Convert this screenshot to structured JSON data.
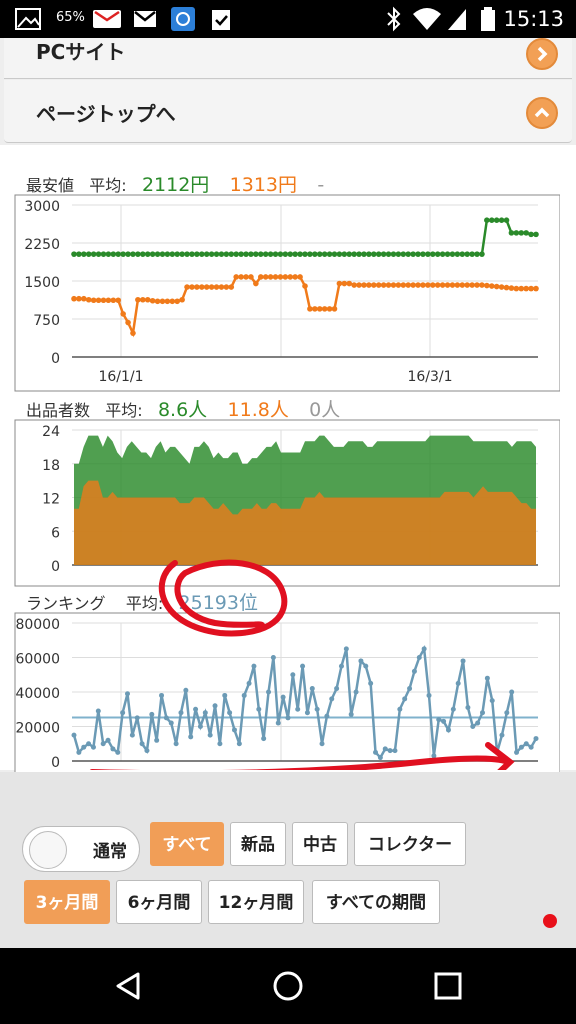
{
  "status_bar": {
    "battery_percent": "65%",
    "time": "15:13",
    "icons": [
      "image-icon",
      "battery-icon",
      "mail-icon",
      "gmail-icon",
      "app-icon",
      "clipboard-icon",
      "bluetooth-icon",
      "wifi-icon",
      "signal-icon",
      "battery-status-icon"
    ]
  },
  "nav": {
    "pc_site": "PCサイト",
    "page_top": "ページトップへ"
  },
  "price_chart": {
    "title": "最安値",
    "avg_label": "平均:",
    "avg_new": "2112円",
    "avg_used": "1313円",
    "avg_collector": "-"
  },
  "sellers_chart": {
    "title": "出品者数",
    "avg_label": "平均:",
    "avg_new": "8.6人",
    "avg_used": "11.8人",
    "avg_collector": "0人"
  },
  "ranking_chart": {
    "title": "ランキング",
    "avg_label": "平均:",
    "avg_value": "25193位"
  },
  "filters": {
    "toggle_label": "通常",
    "condition": [
      "すべて",
      "新品",
      "中古",
      "コレクター"
    ],
    "condition_selected": "すべて",
    "period": [
      "3ヶ月間",
      "6ヶ月間",
      "12ヶ月間",
      "すべての期間"
    ],
    "period_selected": "3ヶ月間"
  },
  "colors": {
    "green": "#2a8a2a",
    "orange": "#f07a1a",
    "ranking_blue": "#6b9ab5",
    "accent": "#f19e57"
  },
  "chart_data": [
    {
      "type": "line",
      "title": "最安値",
      "x_tick_labels": [
        "16/1/1",
        "16/3/1"
      ],
      "ylim": [
        0,
        3000
      ],
      "y_ticks": [
        0,
        750,
        1500,
        2250,
        3000
      ],
      "series": [
        {
          "color": "#2a8a2a",
          "values": [
            2030,
            2030,
            2030,
            2030,
            2030,
            2030,
            2030,
            2030,
            2030,
            2030,
            2030,
            2030,
            2030,
            2030,
            2030,
            2030,
            2030,
            2030,
            2030,
            2030,
            2030,
            2030,
            2030,
            2030,
            2030,
            2030,
            2030,
            2030,
            2030,
            2030,
            2030,
            2030,
            2030,
            2030,
            2030,
            2030,
            2030,
            2030,
            2030,
            2030,
            2030,
            2030,
            2030,
            2030,
            2030,
            2030,
            2030,
            2030,
            2030,
            2030,
            2030,
            2030,
            2030,
            2030,
            2030,
            2030,
            2030,
            2030,
            2030,
            2030,
            2030,
            2030,
            2030,
            2030,
            2030,
            2030,
            2030,
            2030,
            2030,
            2030,
            2030,
            2030,
            2030,
            2030,
            2030,
            2030,
            2030,
            2030,
            2030,
            2030,
            2030,
            2030,
            2030,
            2030,
            2700,
            2700,
            2700,
            2700,
            2700,
            2450,
            2450,
            2450,
            2450,
            2420,
            2420
          ]
        },
        {
          "color": "#f07a1a",
          "values": [
            1150,
            1150,
            1150,
            1130,
            1120,
            1120,
            1120,
            1120,
            1120,
            1120,
            850,
            680,
            470,
            1130,
            1130,
            1130,
            1110,
            1100,
            1100,
            1100,
            1100,
            1100,
            1130,
            1380,
            1380,
            1380,
            1380,
            1380,
            1380,
            1380,
            1380,
            1380,
            1380,
            1580,
            1580,
            1580,
            1580,
            1450,
            1580,
            1580,
            1580,
            1580,
            1580,
            1580,
            1580,
            1580,
            1580,
            1400,
            950,
            950,
            950,
            950,
            950,
            950,
            1450,
            1450,
            1450,
            1420,
            1420,
            1420,
            1420,
            1420,
            1420,
            1420,
            1420,
            1420,
            1420,
            1420,
            1420,
            1420,
            1420,
            1420,
            1420,
            1420,
            1420,
            1420,
            1420,
            1420,
            1420,
            1420,
            1420,
            1420,
            1420,
            1420,
            1410,
            1400,
            1390,
            1380,
            1370,
            1360,
            1350,
            1350,
            1350,
            1350,
            1350
          ]
        }
      ]
    },
    {
      "type": "area",
      "title": "出品者数",
      "ylim": [
        0,
        24
      ],
      "y_ticks": [
        0,
        6,
        12,
        18,
        24
      ],
      "series": [
        {
          "color": "#f07a1a",
          "values": [
            10,
            10,
            14,
            15,
            15,
            15,
            12,
            12,
            13,
            12,
            12,
            12,
            12,
            12,
            12,
            12,
            12,
            12,
            12,
            12,
            12,
            12,
            11,
            11,
            11,
            12,
            12,
            12,
            11,
            10,
            10,
            11,
            10,
            9,
            9,
            10,
            10,
            10,
            11,
            10,
            10,
            11,
            11,
            10,
            10,
            10,
            10,
            10,
            12,
            12,
            12,
            13,
            12,
            12,
            12,
            12,
            12,
            12,
            12,
            12,
            12,
            12,
            12,
            12,
            12,
            12,
            12,
            12,
            12,
            12,
            12,
            12,
            12,
            12,
            12,
            12,
            12,
            13,
            13,
            13,
            13,
            13,
            13,
            12,
            13,
            14,
            13,
            13,
            13,
            13,
            13,
            13,
            12,
            11,
            11,
            10,
            10
          ]
        },
        {
          "color": "#2a8a2a",
          "values": [
            18,
            18,
            21,
            23,
            23,
            23,
            21,
            23,
            22,
            20,
            19,
            21,
            22,
            21,
            20,
            20,
            19,
            21,
            22,
            20,
            21,
            21,
            20,
            19,
            18,
            21,
            21,
            22,
            21,
            19,
            20,
            19,
            19,
            20,
            20,
            18,
            18,
            19,
            19,
            20,
            21,
            21,
            22,
            20,
            20,
            20,
            20,
            20,
            22,
            22,
            22,
            23,
            23,
            22,
            21,
            21,
            21,
            22,
            22,
            22,
            22,
            21,
            21,
            22,
            22,
            22,
            22,
            22,
            22,
            22,
            22,
            22,
            22,
            22,
            23,
            23,
            23,
            23,
            23,
            23,
            23,
            23,
            23,
            22,
            22,
            22,
            22,
            22,
            22,
            22,
            22,
            21,
            22,
            22,
            22,
            22,
            21
          ]
        }
      ]
    },
    {
      "type": "line",
      "title": "ランキング",
      "ylim": [
        0,
        80000
      ],
      "y_ticks": [
        0,
        20000,
        40000,
        60000,
        80000
      ],
      "average_line": 25193,
      "series": [
        {
          "color": "#6b9ab5",
          "values": [
            15000,
            5000,
            8000,
            10000,
            8000,
            29000,
            10000,
            12000,
            7000,
            5000,
            28000,
            39000,
            15000,
            25000,
            10000,
            6000,
            27000,
            12000,
            38000,
            25000,
            22000,
            10000,
            28000,
            41000,
            14000,
            30000,
            20000,
            28000,
            15000,
            32000,
            10000,
            38000,
            28000,
            18000,
            10000,
            38000,
            45000,
            55000,
            30000,
            13000,
            40000,
            60000,
            22000,
            37000,
            25000,
            50000,
            30000,
            55000,
            28000,
            42000,
            30000,
            10000,
            26000,
            36000,
            42000,
            55000,
            65000,
            27000,
            40000,
            58000,
            55000,
            45000,
            5000,
            2000,
            7000,
            6000,
            6000,
            30000,
            36000,
            42000,
            52000,
            60000,
            65000,
            38000,
            3000,
            24000,
            23000,
            18000,
            30000,
            45000,
            58000,
            31000,
            20000,
            22000,
            28000,
            48000,
            35000,
            5000,
            15000,
            28000,
            40000,
            5000,
            8000,
            10000,
            8000,
            13000
          ]
        }
      ]
    }
  ]
}
